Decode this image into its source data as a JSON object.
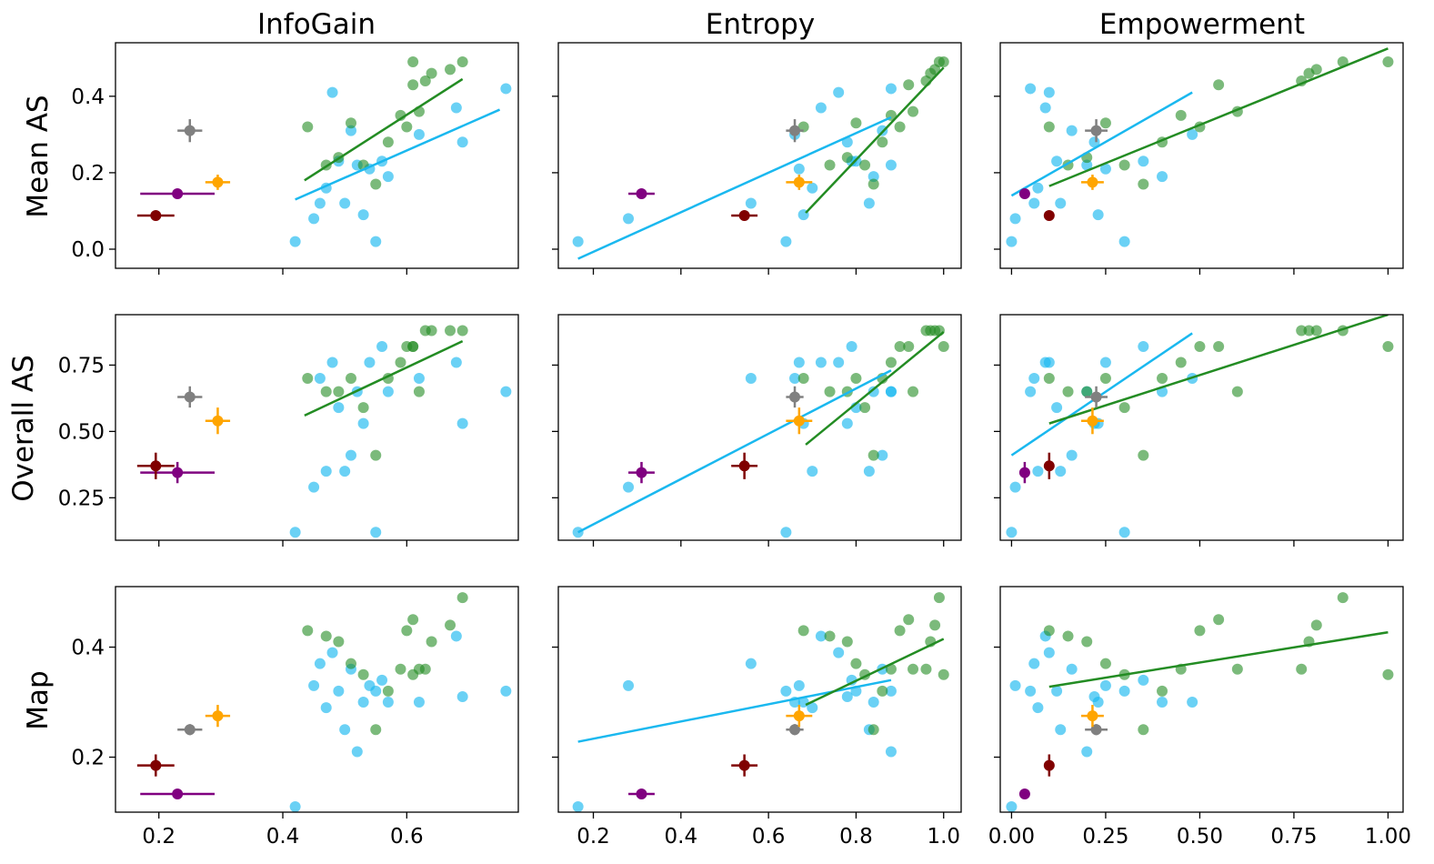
{
  "chart_data": {
    "type": "scatter",
    "title": "",
    "columns": [
      {
        "title": "InfoGain",
        "xlim": [
          0.13,
          0.78
        ],
        "ticks": [
          0.2,
          0.4,
          0.6
        ],
        "tick_labels": [
          "0.2",
          "0.4",
          "0.6"
        ]
      },
      {
        "title": "Entropy",
        "xlim": [
          0.12,
          1.04
        ],
        "ticks": [
          0.2,
          0.4,
          0.6,
          0.8,
          1.0
        ],
        "tick_labels": [
          "0.2",
          "0.4",
          "0.6",
          "0.8",
          "1.0"
        ]
      },
      {
        "title": "Empowerment",
        "xlim": [
          -0.03,
          1.04
        ],
        "ticks": [
          0.0,
          0.25,
          0.5,
          0.75,
          1.0
        ],
        "tick_labels": [
          "0.00",
          "0.25",
          "0.50",
          "0.75",
          "1.00"
        ]
      }
    ],
    "rows": [
      {
        "ylabel": "Mean AS",
        "ylim": [
          -0.05,
          0.54
        ],
        "ticks": [
          0.0,
          0.2,
          0.4
        ],
        "tick_labels": [
          "0.0",
          "0.2",
          "0.4"
        ]
      },
      {
        "ylabel": "Overall AS",
        "ylim": [
          0.09,
          0.94
        ],
        "ticks": [
          0.25,
          0.5,
          0.75
        ],
        "tick_labels": [
          "0.25",
          "0.50",
          "0.75"
        ]
      },
      {
        "ylabel": "Map",
        "ylim": [
          0.1,
          0.51
        ],
        "ticks": [
          0.2,
          0.4
        ],
        "tick_labels": [
          "0.2",
          "0.4"
        ]
      }
    ],
    "colors": {
      "cyan": "#1ab8ef",
      "green": "#238c23",
      "grey": "#808080",
      "orange": "#ffa500",
      "purple": "#800080",
      "darkred": "#800000"
    },
    "scatter": {
      "cyan": [
        {
          "info": 0.42,
          "ent": 0.165,
          "emp": 0.0,
          "mean": 0.02,
          "overall": 0.12,
          "map": 0.11
        },
        {
          "info": 0.45,
          "ent": 0.28,
          "emp": 0.01,
          "mean": 0.08,
          "overall": 0.29,
          "map": 0.33
        },
        {
          "info": 0.46,
          "ent": 0.56,
          "emp": 0.06,
          "mean": 0.12,
          "overall": 0.7,
          "map": 0.37
        },
        {
          "info": 0.47,
          "ent": 0.7,
          "emp": 0.07,
          "mean": 0.16,
          "overall": 0.35,
          "map": 0.29
        },
        {
          "info": 0.48,
          "ent": 0.76,
          "emp": 0.1,
          "mean": 0.41,
          "overall": 0.76,
          "map": 0.39
        },
        {
          "info": 0.49,
          "ent": 0.8,
          "emp": 0.12,
          "mean": 0.23,
          "overall": 0.59,
          "map": 0.32
        },
        {
          "info": 0.5,
          "ent": 0.83,
          "emp": 0.13,
          "mean": 0.12,
          "overall": 0.35,
          "map": 0.25
        },
        {
          "info": 0.51,
          "ent": 0.86,
          "emp": 0.16,
          "mean": 0.31,
          "overall": 0.41,
          "map": 0.36
        },
        {
          "info": 0.52,
          "ent": 0.88,
          "emp": 0.2,
          "mean": 0.22,
          "overall": 0.65,
          "map": 0.21
        },
        {
          "info": 0.53,
          "ent": 0.68,
          "emp": 0.23,
          "mean": 0.09,
          "overall": 0.53,
          "map": 0.3
        },
        {
          "info": 0.54,
          "ent": 0.67,
          "emp": 0.25,
          "mean": 0.21,
          "overall": 0.76,
          "map": 0.33
        },
        {
          "info": 0.55,
          "ent": 0.64,
          "emp": 0.3,
          "mean": 0.02,
          "overall": 0.12,
          "map": 0.32
        },
        {
          "info": 0.56,
          "ent": 0.79,
          "emp": 0.35,
          "mean": 0.23,
          "overall": 0.82,
          "map": 0.34
        },
        {
          "info": 0.57,
          "ent": 0.84,
          "emp": 0.4,
          "mean": 0.19,
          "overall": 0.65,
          "map": 0.3
        },
        {
          "info": 0.62,
          "ent": 0.66,
          "emp": 0.48,
          "mean": 0.3,
          "overall": 0.7,
          "map": 0.3
        },
        {
          "info": 0.68,
          "ent": 0.72,
          "emp": 0.09,
          "mean": 0.37,
          "overall": 0.76,
          "map": 0.42
        },
        {
          "info": 0.69,
          "ent": 0.78,
          "emp": 0.22,
          "mean": 0.28,
          "overall": 0.53,
          "map": 0.31
        },
        {
          "info": 0.76,
          "ent": 0.88,
          "emp": 0.05,
          "mean": 0.42,
          "overall": 0.65,
          "map": 0.32
        }
      ],
      "green": [
        {
          "info": 0.44,
          "ent": 0.68,
          "emp": 0.1,
          "mean": 0.32,
          "overall": 0.7,
          "map": 0.43
        },
        {
          "info": 0.47,
          "ent": 0.74,
          "emp": 0.15,
          "mean": 0.22,
          "overall": 0.65,
          "map": 0.42
        },
        {
          "info": 0.49,
          "ent": 0.78,
          "emp": 0.2,
          "mean": 0.24,
          "overall": 0.65,
          "map": 0.41
        },
        {
          "info": 0.51,
          "ent": 0.8,
          "emp": 0.25,
          "mean": 0.33,
          "overall": 0.7,
          "map": 0.37
        },
        {
          "info": 0.53,
          "ent": 0.82,
          "emp": 0.3,
          "mean": 0.22,
          "overall": 0.59,
          "map": 0.35
        },
        {
          "info": 0.55,
          "ent": 0.84,
          "emp": 0.35,
          "mean": 0.17,
          "overall": 0.41,
          "map": 0.25
        },
        {
          "info": 0.57,
          "ent": 0.86,
          "emp": 0.4,
          "mean": 0.28,
          "overall": 0.7,
          "map": 0.32
        },
        {
          "info": 0.59,
          "ent": 0.88,
          "emp": 0.45,
          "mean": 0.35,
          "overall": 0.76,
          "map": 0.36
        },
        {
          "info": 0.6,
          "ent": 0.9,
          "emp": 0.5,
          "mean": 0.32,
          "overall": 0.82,
          "map": 0.43
        },
        {
          "info": 0.61,
          "ent": 0.92,
          "emp": 0.55,
          "mean": 0.43,
          "overall": 0.82,
          "map": 0.45
        },
        {
          "info": 0.62,
          "ent": 0.93,
          "emp": 0.6,
          "mean": 0.36,
          "overall": 0.65,
          "map": 0.36
        },
        {
          "info": 0.63,
          "ent": 0.96,
          "emp": 0.77,
          "mean": 0.44,
          "overall": 0.88,
          "map": 0.36
        },
        {
          "info": 0.64,
          "ent": 0.97,
          "emp": 0.79,
          "mean": 0.46,
          "overall": 0.88,
          "map": 0.41
        },
        {
          "info": 0.67,
          "ent": 0.98,
          "emp": 0.81,
          "mean": 0.47,
          "overall": 0.88,
          "map": 0.44
        },
        {
          "info": 0.69,
          "ent": 0.99,
          "emp": 0.88,
          "mean": 0.49,
          "overall": 0.88,
          "map": 0.49
        },
        {
          "info": 0.61,
          "ent": 1.0,
          "emp": 1.0,
          "mean": 0.49,
          "overall": 0.82,
          "map": 0.35
        }
      ]
    },
    "fit_lines": [
      [
        {
          "series": "green",
          "x": [
            0.435,
            0.69
          ],
          "y": [
            0.18,
            0.445
          ]
        },
        {
          "series": "cyan",
          "x": [
            0.42,
            0.75
          ],
          "y": [
            0.13,
            0.365
          ]
        }
      ],
      [
        {
          "series": "cyan",
          "x": [
            0.165,
            0.88
          ],
          "y": [
            -0.025,
            0.345
          ]
        },
        {
          "series": "green",
          "x": [
            0.685,
            1.0
          ],
          "y": [
            0.095,
            0.475
          ]
        }
      ],
      [
        {
          "series": "cyan",
          "x": [
            0.0,
            0.48
          ],
          "y": [
            0.14,
            0.41
          ]
        },
        {
          "series": "green",
          "x": [
            0.1,
            1.0
          ],
          "y": [
            0.165,
            0.525
          ]
        }
      ],
      [
        {
          "series": "green",
          "x": [
            0.435,
            0.69
          ],
          "y": [
            0.56,
            0.84
          ]
        }
      ],
      [
        {
          "series": "cyan",
          "x": [
            0.165,
            0.88
          ],
          "y": [
            0.12,
            0.73
          ]
        },
        {
          "series": "green",
          "x": [
            0.685,
            1.0
          ],
          "y": [
            0.45,
            0.875
          ]
        }
      ],
      [
        {
          "series": "cyan",
          "x": [
            0.0,
            0.48
          ],
          "y": [
            0.41,
            0.87
          ]
        },
        {
          "series": "green",
          "x": [
            0.1,
            1.0
          ],
          "y": [
            0.53,
            0.94
          ]
        }
      ],
      [],
      [
        {
          "series": "cyan",
          "x": [
            0.165,
            0.88
          ],
          "y": [
            0.228,
            0.34
          ]
        },
        {
          "series": "green",
          "x": [
            0.685,
            1.0
          ],
          "y": [
            0.295,
            0.415
          ]
        }
      ],
      [
        {
          "series": "green",
          "x": [
            0.1,
            1.0
          ],
          "y": [
            0.328,
            0.427
          ]
        }
      ]
    ],
    "reference_points": [
      {
        "name": "grey",
        "color": "grey",
        "info": 0.25,
        "info_err": 0.02,
        "ent": 0.66,
        "ent_err": 0.02,
        "emp": 0.225,
        "emp_err": 0.03,
        "mean": 0.31,
        "mean_err": 0.03,
        "overall": 0.63,
        "overall_err": 0.04,
        "map": 0.25,
        "map_err": 0.01
      },
      {
        "name": "orange",
        "color": "orange",
        "info": 0.295,
        "info_err": 0.02,
        "ent": 0.67,
        "ent_err": 0.03,
        "emp": 0.215,
        "emp_err": 0.03,
        "mean": 0.175,
        "mean_err": 0.02,
        "overall": 0.54,
        "overall_err": 0.05,
        "map": 0.275,
        "map_err": 0.02
      },
      {
        "name": "purple",
        "color": "purple",
        "info": 0.23,
        "info_err": 0.06,
        "ent": 0.31,
        "ent_err": 0.03,
        "emp": 0.035,
        "emp_err": 0.0,
        "mean": 0.145,
        "mean_err": 0.0,
        "overall": 0.345,
        "overall_err": 0.04,
        "map": 0.133,
        "map_err": 0.0
      },
      {
        "name": "darkred",
        "color": "darkred",
        "info": 0.195,
        "info_err": 0.03,
        "ent": 0.545,
        "ent_err": 0.03,
        "emp": 0.1,
        "emp_err": 0.0,
        "mean": 0.088,
        "mean_err": 0.0,
        "overall": 0.37,
        "overall_err": 0.05,
        "map": 0.185,
        "map_err": 0.02
      }
    ]
  }
}
